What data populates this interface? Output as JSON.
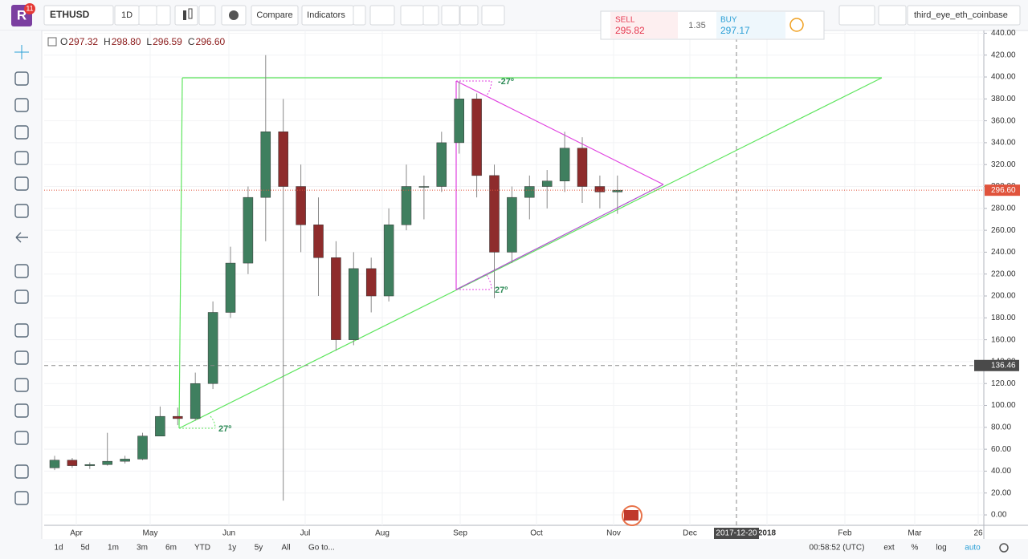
{
  "logo": {
    "letter": "R",
    "badge": "11"
  },
  "toolbar": {
    "symbol": "ETHUSD",
    "interval": "1D",
    "compare": "Compare",
    "indicators": "Indicators"
  },
  "trade": {
    "sell_label": "SELL",
    "sell_price": "295.82",
    "spread": "1.35",
    "buy_label": "BUY",
    "buy_price": "297.17"
  },
  "layout_name": "third_eye_eth_coinbase",
  "legend": [
    {
      "key": "O",
      "value": "297.32"
    },
    {
      "key": "H",
      "value": "298.80"
    },
    {
      "key": "L",
      "value": "296.59"
    },
    {
      "key": "C",
      "value": "296.60"
    }
  ],
  "annotations": [
    "-27º",
    "27º",
    "27º"
  ],
  "time_axis": {
    "labels": [
      "Apr",
      "May",
      "Jun",
      "Jul",
      "Aug",
      "Sep",
      "Oct",
      "Nov",
      "Dec",
      "2018",
      "Feb",
      "Mar",
      "26"
    ],
    "crosshair_date": "2017-12-20"
  },
  "bottom_bar": {
    "ranges": [
      "1d",
      "5d",
      "1m",
      "3m",
      "6m",
      "YTD",
      "1y",
      "5y",
      "All"
    ],
    "goto": "Go to...",
    "clock": "00:58:52 (UTC)",
    "options": [
      "ext",
      "%",
      "log",
      "auto"
    ]
  },
  "chart_data": {
    "type": "candlestick",
    "categories": [
      null,
      null,
      null,
      null,
      null,
      null,
      null,
      null,
      null,
      null,
      null,
      null,
      null,
      null,
      null,
      null,
      null,
      null,
      null,
      null,
      null,
      null,
      null,
      null,
      null,
      null,
      null,
      null,
      null,
      null,
      null,
      null,
      null
    ],
    "open": [
      43,
      50,
      45,
      46,
      49,
      51,
      72,
      90,
      88,
      120,
      185,
      230,
      290,
      350,
      300,
      265,
      235,
      160,
      225,
      200,
      265,
      300,
      300,
      340,
      380,
      310,
      240,
      290,
      300,
      305,
      335,
      300,
      295
    ],
    "high": [
      54,
      52,
      48,
      75,
      54,
      75,
      99,
      98,
      130,
      195,
      245,
      300,
      420,
      380,
      320,
      290,
      250,
      240,
      235,
      280,
      320,
      310,
      350,
      396,
      385,
      320,
      300,
      310,
      315,
      350,
      345,
      310,
      310
    ],
    "low": [
      41,
      43,
      42,
      45,
      47,
      50,
      72,
      82,
      86,
      115,
      180,
      220,
      250,
      13,
      240,
      200,
      150,
      155,
      185,
      195,
      260,
      270,
      295,
      330,
      290,
      198,
      230,
      270,
      280,
      295,
      285,
      280,
      275
    ],
    "close": [
      50,
      45,
      46,
      49,
      51,
      72,
      90,
      88,
      120,
      185,
      230,
      290,
      350,
      300,
      265,
      235,
      160,
      225,
      200,
      265,
      300,
      300,
      340,
      380,
      310,
      240,
      290,
      300,
      305,
      335,
      300,
      295,
      296.6
    ],
    "up_color": "#3f7f5f",
    "down_color": "#8e2c2c",
    "grid": true,
    "ylim": [
      -9.5,
      442.5
    ],
    "yticks": [
      {
        "value": 0,
        "label": "0.00"
      },
      {
        "value": 20,
        "label": "20.00"
      },
      {
        "value": 40,
        "label": "40.00"
      },
      {
        "value": 60,
        "label": "60.00"
      },
      {
        "value": 80,
        "label": "80.00"
      },
      {
        "value": 100,
        "label": "100.00"
      },
      {
        "value": 120,
        "label": "120.00"
      },
      {
        "value": 140,
        "label": "140.00"
      },
      {
        "value": 160,
        "label": "160.00"
      },
      {
        "value": 180,
        "label": "180.00"
      },
      {
        "value": 200,
        "label": "200.00"
      },
      {
        "value": 220,
        "label": "220.00"
      },
      {
        "value": 240,
        "label": "240.00"
      },
      {
        "value": 260,
        "label": "260.00"
      },
      {
        "value": 280,
        "label": "280.00"
      },
      {
        "value": 300,
        "label": "300.00"
      },
      {
        "value": 320,
        "label": "320.00"
      },
      {
        "value": 340,
        "label": "340.00"
      },
      {
        "value": 360,
        "label": "360.00"
      },
      {
        "value": 380,
        "label": "380.00"
      },
      {
        "value": 400,
        "label": "400.00"
      },
      {
        "value": 420,
        "label": "420.00"
      },
      {
        "value": 440,
        "label": "440.00"
      }
    ],
    "last_price": {
      "value": 296.6,
      "label": "296.60",
      "color": "#e0533c"
    },
    "crosshair_price": {
      "value": 136.46,
      "label": "136.46",
      "color": "#4a4a4a"
    }
  }
}
